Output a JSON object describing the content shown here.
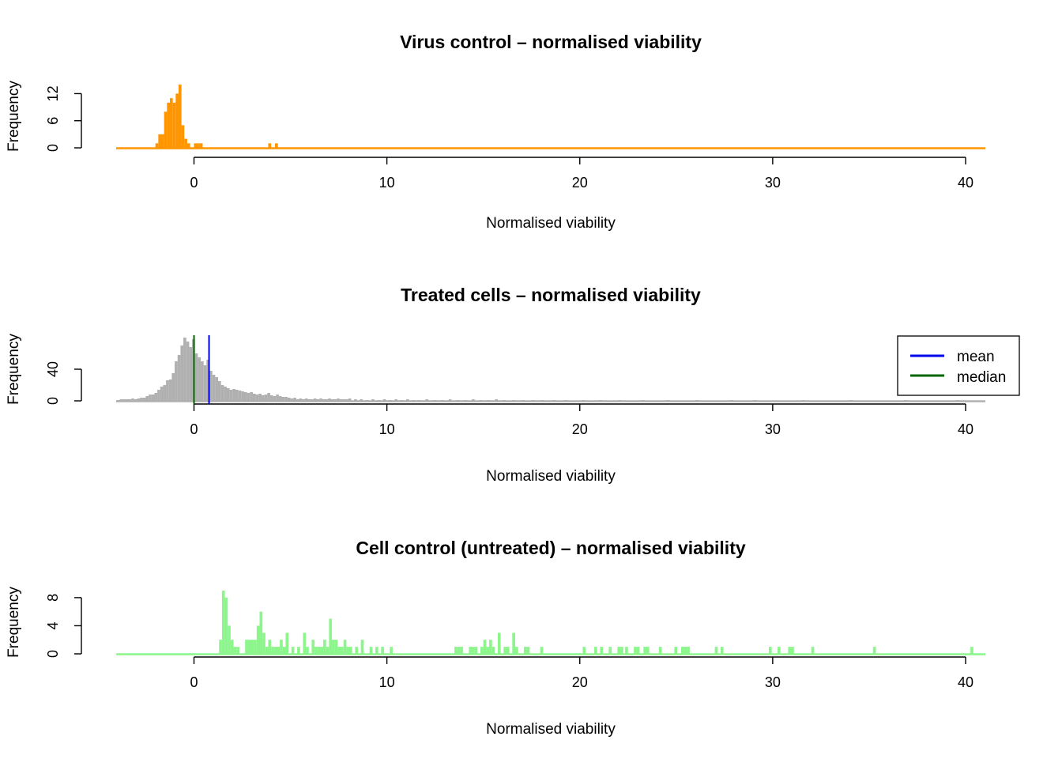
{
  "chart_data": [
    {
      "type": "histogram",
      "title": "Virus control – normalised viability",
      "xlabel": "Normalised viability",
      "ylabel": "Frequency",
      "xlim": [
        -4,
        41
      ],
      "ylim": [
        0,
        14
      ],
      "xticks": [
        0,
        10,
        20,
        30,
        40
      ],
      "yticks": [
        0,
        6,
        12
      ],
      "color": "#FF9500",
      "bin_width": 0.15,
      "bins": [
        {
          "x": -2.0,
          "y": 1
        },
        {
          "x": -1.85,
          "y": 3
        },
        {
          "x": -1.7,
          "y": 3
        },
        {
          "x": -1.55,
          "y": 8
        },
        {
          "x": -1.4,
          "y": 10
        },
        {
          "x": -1.25,
          "y": 11
        },
        {
          "x": -1.1,
          "y": 10
        },
        {
          "x": -0.95,
          "y": 12
        },
        {
          "x": -0.8,
          "y": 14
        },
        {
          "x": -0.65,
          "y": 5
        },
        {
          "x": -0.5,
          "y": 2
        },
        {
          "x": -0.35,
          "y": 1
        },
        {
          "x": 0.0,
          "y": 1
        },
        {
          "x": 0.15,
          "y": 1
        },
        {
          "x": 0.3,
          "y": 1
        },
        {
          "x": 3.85,
          "y": 1
        },
        {
          "x": 4.2,
          "y": 1
        }
      ]
    },
    {
      "type": "histogram",
      "title": "Treated cells – normalised viability",
      "xlabel": "Normalised viability",
      "ylabel": "Frequency",
      "xlim": [
        -4,
        41
      ],
      "ylim": [
        0,
        80
      ],
      "xticks": [
        0,
        10,
        20,
        30,
        40
      ],
      "yticks": [
        0,
        40
      ],
      "color": "#B0B0B0",
      "bin_width": 0.15,
      "bins": [
        {
          "x": -4.0,
          "y": 1
        },
        {
          "x": -3.85,
          "y": 2
        },
        {
          "x": -3.7,
          "y": 2
        },
        {
          "x": -3.55,
          "y": 2
        },
        {
          "x": -3.4,
          "y": 2
        },
        {
          "x": -3.25,
          "y": 3
        },
        {
          "x": -3.1,
          "y": 2
        },
        {
          "x": -2.95,
          "y": 3
        },
        {
          "x": -2.8,
          "y": 4
        },
        {
          "x": -2.65,
          "y": 4
        },
        {
          "x": -2.5,
          "y": 6
        },
        {
          "x": -2.35,
          "y": 8
        },
        {
          "x": -2.2,
          "y": 8
        },
        {
          "x": -2.05,
          "y": 10
        },
        {
          "x": -1.9,
          "y": 14
        },
        {
          "x": -1.75,
          "y": 18
        },
        {
          "x": -1.6,
          "y": 20
        },
        {
          "x": -1.45,
          "y": 26
        },
        {
          "x": -1.3,
          "y": 27
        },
        {
          "x": -1.15,
          "y": 35
        },
        {
          "x": -1.0,
          "y": 50
        },
        {
          "x": -0.85,
          "y": 58
        },
        {
          "x": -0.7,
          "y": 70
        },
        {
          "x": -0.55,
          "y": 80
        },
        {
          "x": -0.4,
          "y": 75
        },
        {
          "x": -0.25,
          "y": 68
        },
        {
          "x": -0.1,
          "y": 78
        },
        {
          "x": 0.05,
          "y": 60
        },
        {
          "x": 0.2,
          "y": 55
        },
        {
          "x": 0.35,
          "y": 50
        },
        {
          "x": 0.5,
          "y": 45
        },
        {
          "x": 0.65,
          "y": 52
        },
        {
          "x": 0.8,
          "y": 38
        },
        {
          "x": 0.95,
          "y": 33
        },
        {
          "x": 1.1,
          "y": 30
        },
        {
          "x": 1.25,
          "y": 25
        },
        {
          "x": 1.4,
          "y": 20
        },
        {
          "x": 1.55,
          "y": 18
        },
        {
          "x": 1.7,
          "y": 16
        },
        {
          "x": 1.85,
          "y": 14
        },
        {
          "x": 2.0,
          "y": 15
        },
        {
          "x": 2.15,
          "y": 14
        },
        {
          "x": 2.3,
          "y": 13
        },
        {
          "x": 2.45,
          "y": 12
        },
        {
          "x": 2.6,
          "y": 11
        },
        {
          "x": 2.75,
          "y": 10
        },
        {
          "x": 2.9,
          "y": 11
        },
        {
          "x": 3.05,
          "y": 9
        },
        {
          "x": 3.2,
          "y": 8
        },
        {
          "x": 3.35,
          "y": 9
        },
        {
          "x": 3.5,
          "y": 7
        },
        {
          "x": 3.65,
          "y": 8
        },
        {
          "x": 3.8,
          "y": 10
        },
        {
          "x": 3.95,
          "y": 7
        },
        {
          "x": 4.1,
          "y": 6
        },
        {
          "x": 4.25,
          "y": 8
        },
        {
          "x": 4.4,
          "y": 6
        },
        {
          "x": 4.55,
          "y": 5
        },
        {
          "x": 4.7,
          "y": 5
        },
        {
          "x": 4.85,
          "y": 4
        },
        {
          "x": 5.0,
          "y": 3
        },
        {
          "x": 5.15,
          "y": 4
        },
        {
          "x": 5.3,
          "y": 2
        },
        {
          "x": 5.45,
          "y": 3
        },
        {
          "x": 5.6,
          "y": 2
        },
        {
          "x": 5.75,
          "y": 3
        },
        {
          "x": 5.9,
          "y": 2
        },
        {
          "x": 6.05,
          "y": 2
        },
        {
          "x": 6.2,
          "y": 3
        },
        {
          "x": 6.35,
          "y": 2
        },
        {
          "x": 6.5,
          "y": 3
        },
        {
          "x": 6.65,
          "y": 2
        },
        {
          "x": 6.8,
          "y": 2
        },
        {
          "x": 6.95,
          "y": 3
        },
        {
          "x": 7.1,
          "y": 2
        },
        {
          "x": 7.25,
          "y": 2
        },
        {
          "x": 7.4,
          "y": 3
        },
        {
          "x": 7.55,
          "y": 2
        },
        {
          "x": 7.7,
          "y": 2
        },
        {
          "x": 7.85,
          "y": 2
        },
        {
          "x": 8.0,
          "y": 3
        },
        {
          "x": 8.3,
          "y": 2
        },
        {
          "x": 8.6,
          "y": 2
        },
        {
          "x": 8.9,
          "y": 1
        },
        {
          "x": 9.2,
          "y": 2
        },
        {
          "x": 9.5,
          "y": 1
        },
        {
          "x": 9.8,
          "y": 2
        },
        {
          "x": 10.1,
          "y": 1
        },
        {
          "x": 10.4,
          "y": 2
        },
        {
          "x": 10.7,
          "y": 1
        },
        {
          "x": 11.0,
          "y": 2
        },
        {
          "x": 11.3,
          "y": 1
        },
        {
          "x": 11.6,
          "y": 1
        },
        {
          "x": 12.0,
          "y": 2
        },
        {
          "x": 12.4,
          "y": 1
        },
        {
          "x": 12.8,
          "y": 1
        },
        {
          "x": 13.2,
          "y": 2
        },
        {
          "x": 13.6,
          "y": 1
        },
        {
          "x": 14.0,
          "y": 1
        },
        {
          "x": 14.4,
          "y": 2
        },
        {
          "x": 14.8,
          "y": 1
        },
        {
          "x": 15.2,
          "y": 1
        },
        {
          "x": 15.6,
          "y": 2
        },
        {
          "x": 16.0,
          "y": 1
        },
        {
          "x": 16.5,
          "y": 1
        },
        {
          "x": 17.0,
          "y": 1
        },
        {
          "x": 17.5,
          "y": 1
        },
        {
          "x": 18.0,
          "y": 1
        },
        {
          "x": 18.6,
          "y": 1
        },
        {
          "x": 19.2,
          "y": 1
        },
        {
          "x": 20.1,
          "y": 1
        },
        {
          "x": 21.0,
          "y": 1
        },
        {
          "x": 22.0,
          "y": 1
        },
        {
          "x": 23.2,
          "y": 1
        },
        {
          "x": 24.5,
          "y": 1
        },
        {
          "x": 26.0,
          "y": 1
        },
        {
          "x": 27.8,
          "y": 1
        },
        {
          "x": 29.0,
          "y": 1
        },
        {
          "x": 31.5,
          "y": 1
        },
        {
          "x": 34.0,
          "y": 1
        },
        {
          "x": 36.8,
          "y": 1
        },
        {
          "x": 39.5,
          "y": 1
        }
      ],
      "reference_lines": [
        {
          "name": "mean",
          "x": 0.78,
          "color": "#0000EE"
        },
        {
          "name": "median",
          "x": 0.0,
          "color": "#006400"
        }
      ],
      "legend": {
        "placement": "top-right",
        "entries": [
          {
            "label": "mean",
            "color": "#0000EE"
          },
          {
            "label": "median",
            "color": "#006400"
          }
        ]
      }
    },
    {
      "type": "histogram",
      "title": "Cell control (untreated) – normalised viability",
      "xlabel": "Normalised viability",
      "ylabel": "Frequency",
      "xlim": [
        -4,
        41
      ],
      "ylim": [
        0,
        9
      ],
      "xticks": [
        0,
        10,
        20,
        30,
        40
      ],
      "yticks": [
        0,
        4,
        8
      ],
      "color": "#8CF58C",
      "bin_width": 0.15,
      "bins": [
        {
          "x": 1.3,
          "y": 2
        },
        {
          "x": 1.45,
          "y": 9
        },
        {
          "x": 1.6,
          "y": 8
        },
        {
          "x": 1.75,
          "y": 4
        },
        {
          "x": 1.9,
          "y": 2
        },
        {
          "x": 2.05,
          "y": 1
        },
        {
          "x": 2.2,
          "y": 1
        },
        {
          "x": 2.65,
          "y": 2
        },
        {
          "x": 2.8,
          "y": 2
        },
        {
          "x": 2.95,
          "y": 2
        },
        {
          "x": 3.1,
          "y": 2
        },
        {
          "x": 3.25,
          "y": 4
        },
        {
          "x": 3.4,
          "y": 6
        },
        {
          "x": 3.55,
          "y": 3
        },
        {
          "x": 3.7,
          "y": 1
        },
        {
          "x": 3.85,
          "y": 2
        },
        {
          "x": 4.0,
          "y": 1
        },
        {
          "x": 4.15,
          "y": 1
        },
        {
          "x": 4.3,
          "y": 1
        },
        {
          "x": 4.45,
          "y": 2
        },
        {
          "x": 4.6,
          "y": 1
        },
        {
          "x": 4.75,
          "y": 3
        },
        {
          "x": 5.05,
          "y": 1
        },
        {
          "x": 5.35,
          "y": 1
        },
        {
          "x": 5.65,
          "y": 3
        },
        {
          "x": 5.8,
          "y": 1
        },
        {
          "x": 6.1,
          "y": 2
        },
        {
          "x": 6.25,
          "y": 1
        },
        {
          "x": 6.4,
          "y": 1
        },
        {
          "x": 6.55,
          "y": 1
        },
        {
          "x": 6.7,
          "y": 2
        },
        {
          "x": 6.85,
          "y": 1
        },
        {
          "x": 7.0,
          "y": 5
        },
        {
          "x": 7.15,
          "y": 2
        },
        {
          "x": 7.3,
          "y": 2
        },
        {
          "x": 7.45,
          "y": 1
        },
        {
          "x": 7.6,
          "y": 1
        },
        {
          "x": 7.75,
          "y": 2
        },
        {
          "x": 7.9,
          "y": 1
        },
        {
          "x": 8.05,
          "y": 1
        },
        {
          "x": 8.35,
          "y": 1
        },
        {
          "x": 8.65,
          "y": 2
        },
        {
          "x": 9.1,
          "y": 1
        },
        {
          "x": 9.4,
          "y": 1
        },
        {
          "x": 9.7,
          "y": 1
        },
        {
          "x": 10.15,
          "y": 1
        },
        {
          "x": 13.5,
          "y": 1
        },
        {
          "x": 13.65,
          "y": 1
        },
        {
          "x": 13.8,
          "y": 1
        },
        {
          "x": 14.25,
          "y": 1
        },
        {
          "x": 14.4,
          "y": 1
        },
        {
          "x": 14.55,
          "y": 1
        },
        {
          "x": 14.85,
          "y": 1
        },
        {
          "x": 15.0,
          "y": 2
        },
        {
          "x": 15.15,
          "y": 1
        },
        {
          "x": 15.3,
          "y": 2
        },
        {
          "x": 15.45,
          "y": 1
        },
        {
          "x": 15.75,
          "y": 3
        },
        {
          "x": 16.05,
          "y": 1
        },
        {
          "x": 16.2,
          "y": 1
        },
        {
          "x": 16.5,
          "y": 3
        },
        {
          "x": 16.65,
          "y": 1
        },
        {
          "x": 17.1,
          "y": 1
        },
        {
          "x": 17.25,
          "y": 1
        },
        {
          "x": 17.95,
          "y": 1
        },
        {
          "x": 20.15,
          "y": 1
        },
        {
          "x": 20.75,
          "y": 1
        },
        {
          "x": 21.05,
          "y": 1
        },
        {
          "x": 21.5,
          "y": 1
        },
        {
          "x": 21.95,
          "y": 1
        },
        {
          "x": 22.1,
          "y": 1
        },
        {
          "x": 22.35,
          "y": 1
        },
        {
          "x": 22.8,
          "y": 1
        },
        {
          "x": 22.95,
          "y": 1
        },
        {
          "x": 23.3,
          "y": 1
        },
        {
          "x": 23.45,
          "y": 1
        },
        {
          "x": 24.1,
          "y": 1
        },
        {
          "x": 24.9,
          "y": 1
        },
        {
          "x": 25.25,
          "y": 1
        },
        {
          "x": 25.4,
          "y": 1
        },
        {
          "x": 25.55,
          "y": 1
        },
        {
          "x": 27.0,
          "y": 1
        },
        {
          "x": 27.3,
          "y": 1
        },
        {
          "x": 29.8,
          "y": 1
        },
        {
          "x": 30.25,
          "y": 1
        },
        {
          "x": 30.8,
          "y": 1
        },
        {
          "x": 30.95,
          "y": 1
        },
        {
          "x": 32.0,
          "y": 1
        },
        {
          "x": 35.2,
          "y": 1
        },
        {
          "x": 40.25,
          "y": 1
        }
      ]
    }
  ]
}
